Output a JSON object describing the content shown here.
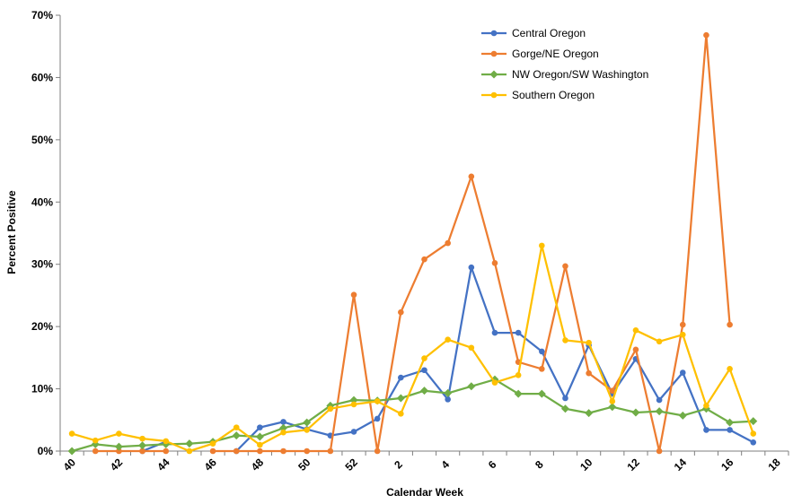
{
  "chart_data": {
    "type": "line",
    "title": "",
    "xlabel": "Calendar Week",
    "ylabel": "Percent Positive",
    "ylim": [
      0,
      70
    ],
    "yticks": [
      0,
      10,
      20,
      30,
      40,
      50,
      60,
      70
    ],
    "ytick_labels": [
      "0%",
      "10%",
      "20%",
      "30%",
      "40%",
      "50%",
      "60%",
      "70%"
    ],
    "x": [
      "40",
      "41",
      "42",
      "43",
      "44",
      "45",
      "46",
      "47",
      "48",
      "49",
      "50",
      "51",
      "52",
      "1",
      "2",
      "3",
      "4",
      "5",
      "6",
      "7",
      "8",
      "9",
      "10",
      "11",
      "12",
      "13",
      "14",
      "15",
      "16",
      "17",
      "18"
    ],
    "xtick_labels": [
      "40",
      "42",
      "44",
      "46",
      "48",
      "50",
      "52",
      "2",
      "4",
      "6",
      "8",
      "10",
      "12",
      "14",
      "16",
      "18"
    ],
    "legend_position": "top-right",
    "grid": false,
    "series": [
      {
        "name": "Central Oregon",
        "color": "#4472C4",
        "marker": "circle",
        "values": [
          null,
          null,
          null,
          0,
          1.5,
          null,
          null,
          0,
          3.8,
          4.7,
          3.5,
          2.5,
          3.1,
          5.2,
          11.8,
          13,
          8.3,
          29.5,
          19,
          19,
          16,
          8.5,
          17,
          9.2,
          14.8,
          8.2,
          12.6,
          3.4,
          3.4,
          1.4,
          null
        ]
      },
      {
        "name": "Gorge/NE Oregon",
        "color": "#ED7D31",
        "marker": "circle",
        "values": [
          null,
          0,
          0,
          0,
          0,
          null,
          0,
          0,
          0,
          0,
          0,
          0,
          25.1,
          0,
          22.3,
          30.8,
          33.4,
          44.1,
          30.2,
          14.3,
          13.2,
          29.7,
          12.5,
          9.7,
          16.3,
          0,
          20.3,
          66.8,
          20.3,
          null,
          null
        ]
      },
      {
        "name": "NW Oregon/SW Washington",
        "color": "#70AD47",
        "marker": "diamond",
        "values": [
          0,
          1.1,
          0.7,
          0.9,
          1.1,
          1.2,
          1.5,
          2.5,
          2.3,
          3.7,
          4.6,
          7.3,
          8.2,
          8.1,
          8.5,
          9.7,
          9.3,
          10.4,
          11.5,
          9.2,
          9.2,
          6.8,
          6.1,
          7.1,
          6.2,
          6.4,
          5.7,
          6.8,
          4.6,
          4.8,
          null
        ]
      },
      {
        "name": "Southern Oregon",
        "color": "#FFC000",
        "marker": "circle",
        "values": [
          2.8,
          1.7,
          2.8,
          2,
          1.6,
          0,
          1.2,
          3.8,
          1,
          3,
          3.4,
          6.8,
          7.5,
          8,
          6,
          14.9,
          17.9,
          16.6,
          11,
          12.2,
          33,
          17.8,
          17.4,
          8,
          19.4,
          17.6,
          18.7,
          7.3,
          13.2,
          2.8,
          null
        ]
      }
    ]
  }
}
